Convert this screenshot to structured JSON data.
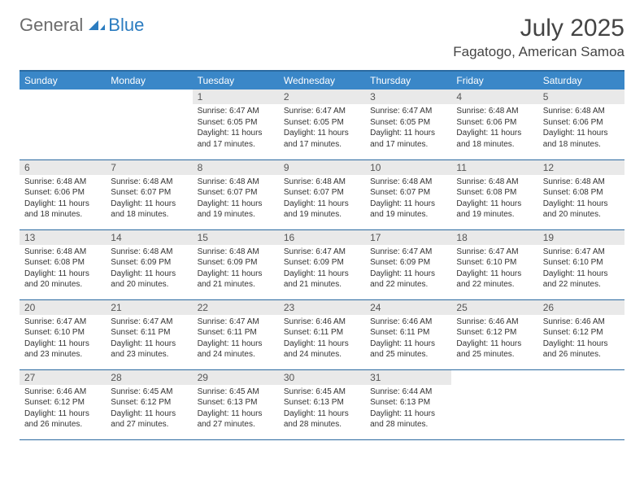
{
  "brand": {
    "part1": "General",
    "part2": "Blue"
  },
  "title": "July 2025",
  "location": "Fagatogo, American Samoa",
  "colors": {
    "header_bg": "#3a87c8",
    "header_border": "#2b6aa0",
    "daynum_bg": "#e9e9e9",
    "brand_gray": "#6b6b6b",
    "brand_blue": "#2b7cc0"
  },
  "weekdays": [
    "Sunday",
    "Monday",
    "Tuesday",
    "Wednesday",
    "Thursday",
    "Friday",
    "Saturday"
  ],
  "weeks": [
    [
      null,
      null,
      {
        "n": "1",
        "sr": "Sunrise: 6:47 AM",
        "ss": "Sunset: 6:05 PM",
        "dl1": "Daylight: 11 hours",
        "dl2": "and 17 minutes."
      },
      {
        "n": "2",
        "sr": "Sunrise: 6:47 AM",
        "ss": "Sunset: 6:05 PM",
        "dl1": "Daylight: 11 hours",
        "dl2": "and 17 minutes."
      },
      {
        "n": "3",
        "sr": "Sunrise: 6:47 AM",
        "ss": "Sunset: 6:05 PM",
        "dl1": "Daylight: 11 hours",
        "dl2": "and 17 minutes."
      },
      {
        "n": "4",
        "sr": "Sunrise: 6:48 AM",
        "ss": "Sunset: 6:06 PM",
        "dl1": "Daylight: 11 hours",
        "dl2": "and 18 minutes."
      },
      {
        "n": "5",
        "sr": "Sunrise: 6:48 AM",
        "ss": "Sunset: 6:06 PM",
        "dl1": "Daylight: 11 hours",
        "dl2": "and 18 minutes."
      }
    ],
    [
      {
        "n": "6",
        "sr": "Sunrise: 6:48 AM",
        "ss": "Sunset: 6:06 PM",
        "dl1": "Daylight: 11 hours",
        "dl2": "and 18 minutes."
      },
      {
        "n": "7",
        "sr": "Sunrise: 6:48 AM",
        "ss": "Sunset: 6:07 PM",
        "dl1": "Daylight: 11 hours",
        "dl2": "and 18 minutes."
      },
      {
        "n": "8",
        "sr": "Sunrise: 6:48 AM",
        "ss": "Sunset: 6:07 PM",
        "dl1": "Daylight: 11 hours",
        "dl2": "and 19 minutes."
      },
      {
        "n": "9",
        "sr": "Sunrise: 6:48 AM",
        "ss": "Sunset: 6:07 PM",
        "dl1": "Daylight: 11 hours",
        "dl2": "and 19 minutes."
      },
      {
        "n": "10",
        "sr": "Sunrise: 6:48 AM",
        "ss": "Sunset: 6:07 PM",
        "dl1": "Daylight: 11 hours",
        "dl2": "and 19 minutes."
      },
      {
        "n": "11",
        "sr": "Sunrise: 6:48 AM",
        "ss": "Sunset: 6:08 PM",
        "dl1": "Daylight: 11 hours",
        "dl2": "and 19 minutes."
      },
      {
        "n": "12",
        "sr": "Sunrise: 6:48 AM",
        "ss": "Sunset: 6:08 PM",
        "dl1": "Daylight: 11 hours",
        "dl2": "and 20 minutes."
      }
    ],
    [
      {
        "n": "13",
        "sr": "Sunrise: 6:48 AM",
        "ss": "Sunset: 6:08 PM",
        "dl1": "Daylight: 11 hours",
        "dl2": "and 20 minutes."
      },
      {
        "n": "14",
        "sr": "Sunrise: 6:48 AM",
        "ss": "Sunset: 6:09 PM",
        "dl1": "Daylight: 11 hours",
        "dl2": "and 20 minutes."
      },
      {
        "n": "15",
        "sr": "Sunrise: 6:48 AM",
        "ss": "Sunset: 6:09 PM",
        "dl1": "Daylight: 11 hours",
        "dl2": "and 21 minutes."
      },
      {
        "n": "16",
        "sr": "Sunrise: 6:47 AM",
        "ss": "Sunset: 6:09 PM",
        "dl1": "Daylight: 11 hours",
        "dl2": "and 21 minutes."
      },
      {
        "n": "17",
        "sr": "Sunrise: 6:47 AM",
        "ss": "Sunset: 6:09 PM",
        "dl1": "Daylight: 11 hours",
        "dl2": "and 22 minutes."
      },
      {
        "n": "18",
        "sr": "Sunrise: 6:47 AM",
        "ss": "Sunset: 6:10 PM",
        "dl1": "Daylight: 11 hours",
        "dl2": "and 22 minutes."
      },
      {
        "n": "19",
        "sr": "Sunrise: 6:47 AM",
        "ss": "Sunset: 6:10 PM",
        "dl1": "Daylight: 11 hours",
        "dl2": "and 22 minutes."
      }
    ],
    [
      {
        "n": "20",
        "sr": "Sunrise: 6:47 AM",
        "ss": "Sunset: 6:10 PM",
        "dl1": "Daylight: 11 hours",
        "dl2": "and 23 minutes."
      },
      {
        "n": "21",
        "sr": "Sunrise: 6:47 AM",
        "ss": "Sunset: 6:11 PM",
        "dl1": "Daylight: 11 hours",
        "dl2": "and 23 minutes."
      },
      {
        "n": "22",
        "sr": "Sunrise: 6:47 AM",
        "ss": "Sunset: 6:11 PM",
        "dl1": "Daylight: 11 hours",
        "dl2": "and 24 minutes."
      },
      {
        "n": "23",
        "sr": "Sunrise: 6:46 AM",
        "ss": "Sunset: 6:11 PM",
        "dl1": "Daylight: 11 hours",
        "dl2": "and 24 minutes."
      },
      {
        "n": "24",
        "sr": "Sunrise: 6:46 AM",
        "ss": "Sunset: 6:11 PM",
        "dl1": "Daylight: 11 hours",
        "dl2": "and 25 minutes."
      },
      {
        "n": "25",
        "sr": "Sunrise: 6:46 AM",
        "ss": "Sunset: 6:12 PM",
        "dl1": "Daylight: 11 hours",
        "dl2": "and 25 minutes."
      },
      {
        "n": "26",
        "sr": "Sunrise: 6:46 AM",
        "ss": "Sunset: 6:12 PM",
        "dl1": "Daylight: 11 hours",
        "dl2": "and 26 minutes."
      }
    ],
    [
      {
        "n": "27",
        "sr": "Sunrise: 6:46 AM",
        "ss": "Sunset: 6:12 PM",
        "dl1": "Daylight: 11 hours",
        "dl2": "and 26 minutes."
      },
      {
        "n": "28",
        "sr": "Sunrise: 6:45 AM",
        "ss": "Sunset: 6:12 PM",
        "dl1": "Daylight: 11 hours",
        "dl2": "and 27 minutes."
      },
      {
        "n": "29",
        "sr": "Sunrise: 6:45 AM",
        "ss": "Sunset: 6:13 PM",
        "dl1": "Daylight: 11 hours",
        "dl2": "and 27 minutes."
      },
      {
        "n": "30",
        "sr": "Sunrise: 6:45 AM",
        "ss": "Sunset: 6:13 PM",
        "dl1": "Daylight: 11 hours",
        "dl2": "and 28 minutes."
      },
      {
        "n": "31",
        "sr": "Sunrise: 6:44 AM",
        "ss": "Sunset: 6:13 PM",
        "dl1": "Daylight: 11 hours",
        "dl2": "and 28 minutes."
      },
      null,
      null
    ]
  ]
}
